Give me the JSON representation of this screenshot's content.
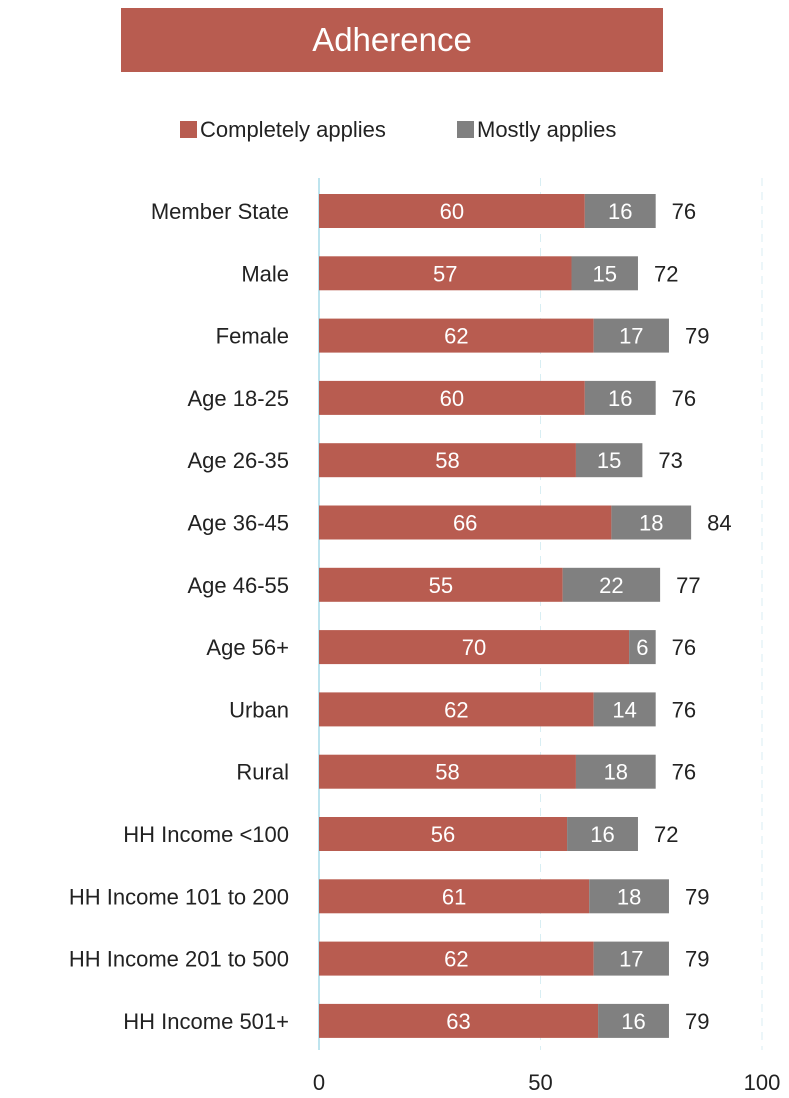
{
  "chart_data": {
    "type": "bar",
    "orientation": "horizontal",
    "stacked": true,
    "title": "Adherence",
    "categories": [
      "Member State",
      "Male",
      "Female",
      "Age 18-25",
      "Age 26-35",
      "Age 36-45",
      "Age 46-55",
      "Age 56+",
      "Urban",
      "Rural",
      "HH Income <100",
      "HH Income 101 to 200",
      "HH Income 201 to 500",
      "HH Income 501+"
    ],
    "series": [
      {
        "name": "Completely applies",
        "color": "#b85c50",
        "values": [
          60,
          57,
          62,
          60,
          58,
          66,
          55,
          70,
          62,
          58,
          56,
          61,
          62,
          63
        ]
      },
      {
        "name": "Mostly applies",
        "color": "#808080",
        "values": [
          16,
          15,
          17,
          16,
          15,
          18,
          22,
          6,
          14,
          18,
          16,
          18,
          17,
          16
        ]
      }
    ],
    "totals": [
      76,
      72,
      79,
      76,
      73,
      84,
      77,
      76,
      76,
      76,
      72,
      79,
      79,
      79
    ],
    "xlim": [
      0,
      100
    ],
    "xticks": [
      0,
      50,
      100
    ],
    "legend_position": "top",
    "grid": true
  }
}
